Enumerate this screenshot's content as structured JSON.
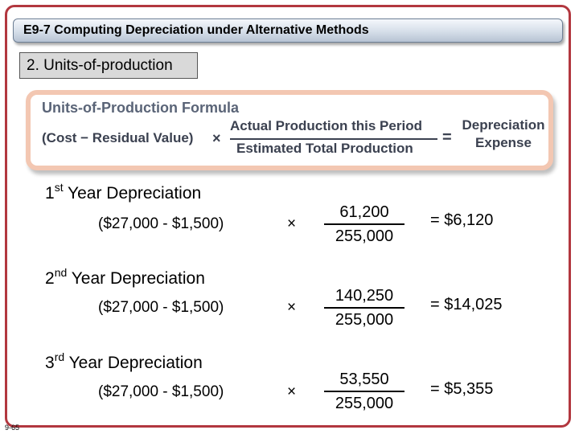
{
  "slide": {
    "title": "E9-7 Computing Depreciation under Alternative Methods",
    "subtitle": "2. Units-of-production",
    "slide_number": "9-65"
  },
  "formula": {
    "title": "Units-of-Production Formula",
    "cost_term": "(Cost − Residual Value)",
    "times": "×",
    "numerator": "Actual Production this Period",
    "denominator": "Estimated Total Production",
    "equals": "=",
    "result_line1": "Depreciation",
    "result_line2": "Expense"
  },
  "years": [
    {
      "ordinal": "1",
      "suffix": "st",
      "heading_rest": " Year Depreciation",
      "expression": "($27,000 - $1,500)",
      "times": "×",
      "numerator": "61,200",
      "denominator": "255,000",
      "result": "=  $6,120"
    },
    {
      "ordinal": "2",
      "suffix": "nd",
      "heading_rest": " Year Depreciation",
      "expression": "($27,000 - $1,500)",
      "times": "×",
      "numerator": "140,250",
      "denominator": "255,000",
      "result": "=  $14,025"
    },
    {
      "ordinal": "3",
      "suffix": "rd",
      "heading_rest": " Year Depreciation",
      "expression": "($27,000 - $1,500)",
      "times": "×",
      "numerator": "53,550",
      "denominator": "255,000",
      "result": "=  $5,355"
    }
  ]
}
